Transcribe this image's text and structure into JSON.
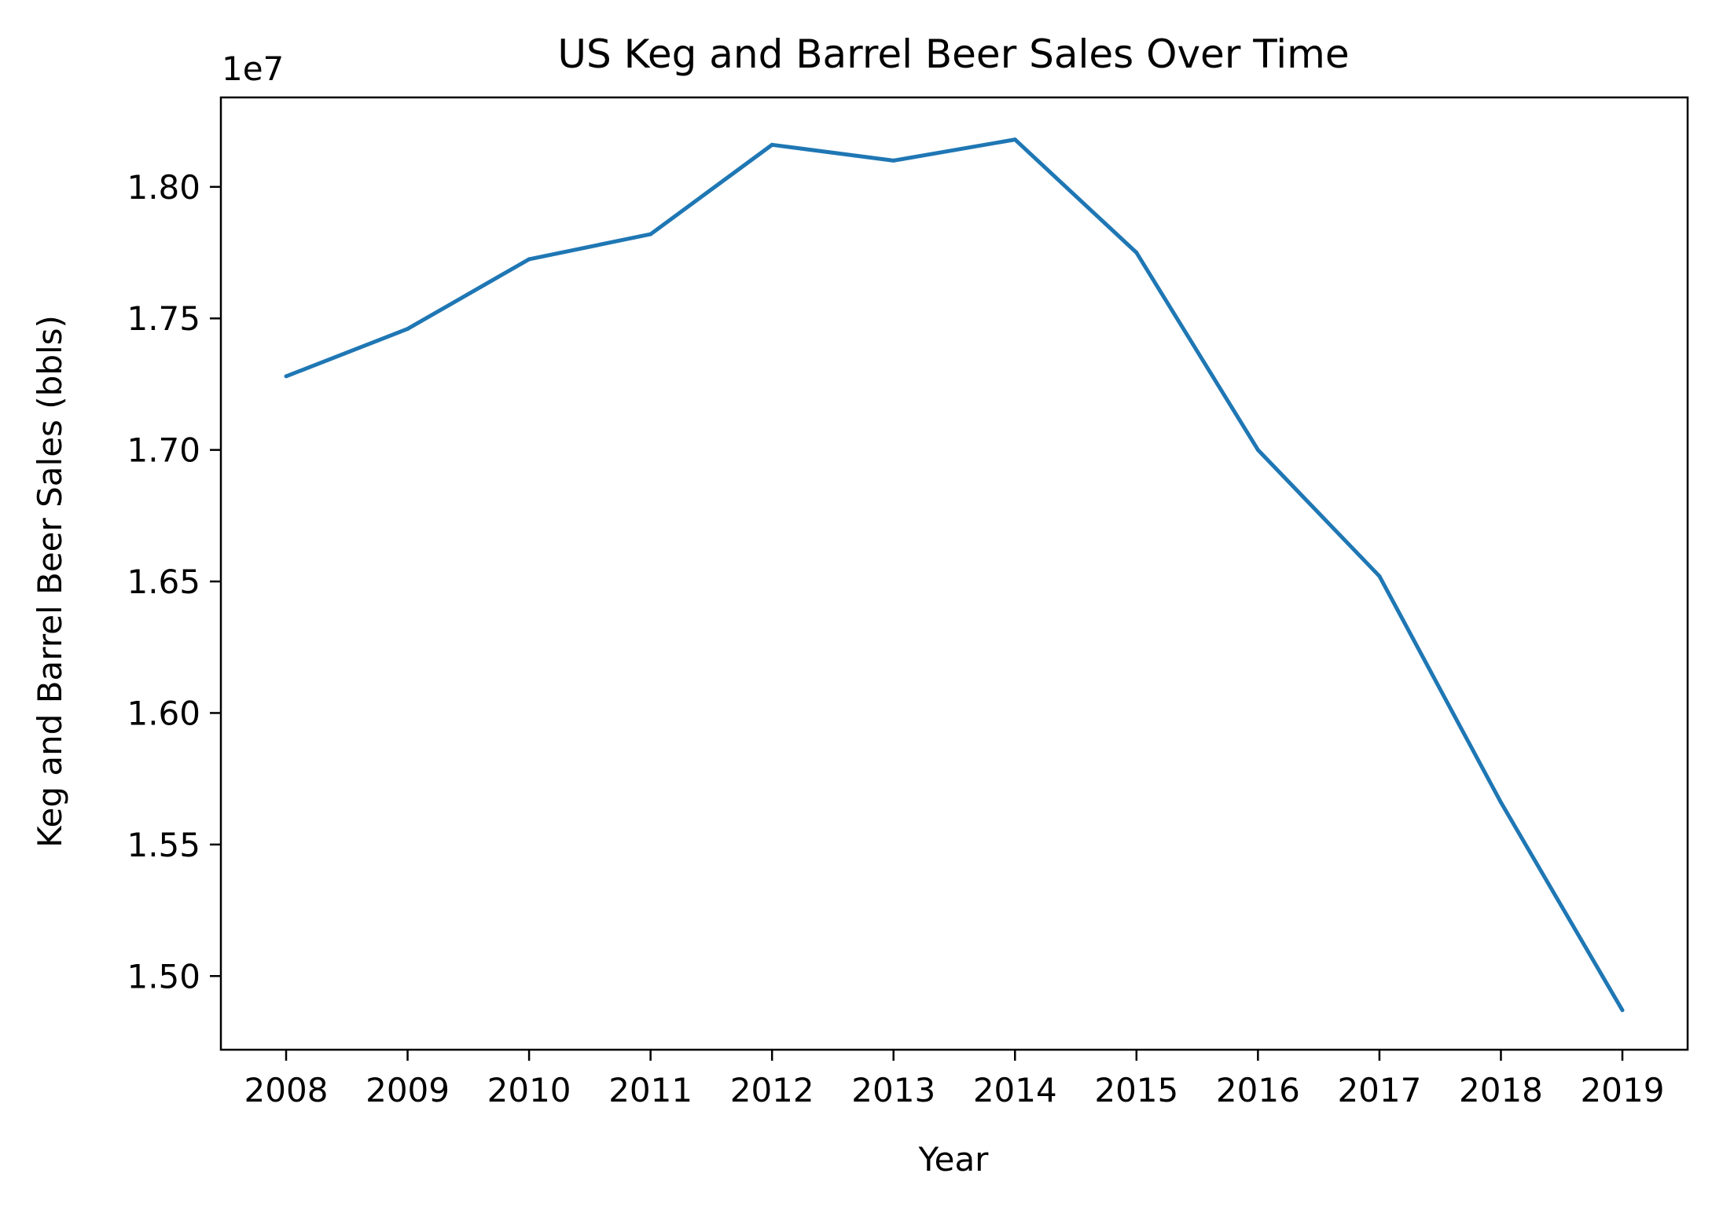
{
  "chart_data": {
    "type": "line",
    "title": "US Keg and Barrel Beer Sales Over Time",
    "xlabel": "Year",
    "ylabel": "Keg and Barrel Beer Sales (bbls)",
    "offset_label": "1e7",
    "x": [
      "2008",
      "2009",
      "2010",
      "2011",
      "2012",
      "2013",
      "2014",
      "2015",
      "2016",
      "2017",
      "2018",
      "2019"
    ],
    "series": [
      {
        "color": "#1f77b4",
        "values": [
          17280000,
          17460000,
          17725000,
          17820000,
          18160000,
          18100000,
          18180000,
          17750000,
          17000000,
          16520000,
          15660000,
          14870000
        ]
      }
    ],
    "y_ticks": [
      {
        "value": 15000000,
        "label": "1.50"
      },
      {
        "value": 15500000,
        "label": "1.55"
      },
      {
        "value": 16000000,
        "label": "1.60"
      },
      {
        "value": 16500000,
        "label": "1.65"
      },
      {
        "value": 17000000,
        "label": "1.70"
      },
      {
        "value": 17500000,
        "label": "1.75"
      },
      {
        "value": 18000000,
        "label": "1.80"
      }
    ],
    "ylim": [
      14720000,
      18340000
    ],
    "grid": false,
    "legend": "none"
  }
}
